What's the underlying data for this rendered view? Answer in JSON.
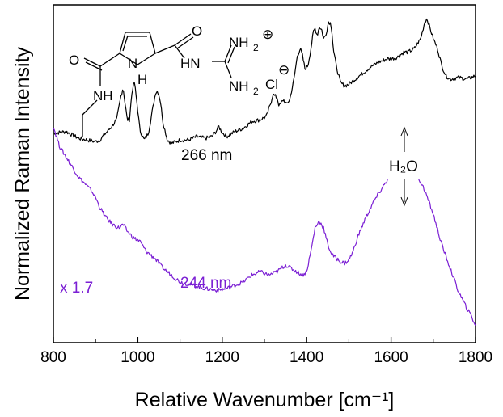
{
  "chart_data": {
    "type": "line",
    "title": "",
    "xlabel": "Relative Wavenumber [cm⁻¹]",
    "ylabel": "Normalized Raman Intensity",
    "xlim": [
      800,
      1800
    ],
    "ylim": [
      0,
      1
    ],
    "xticks": [
      800,
      1000,
      1200,
      1400,
      1600,
      1800
    ],
    "xtick_labels": [
      "800",
      "1000",
      "1200",
      "1400",
      "1600",
      "1800"
    ],
    "grid": false,
    "series": [
      {
        "name": "266 nm",
        "label": "266 nm",
        "color": "#000000",
        "x": [
          800,
          830,
          860,
          880,
          900,
          910,
          920,
          935,
          950,
          960,
          965,
          975,
          980,
          987,
          992,
          997,
          1005,
          1015,
          1025,
          1035,
          1042,
          1047,
          1053,
          1060,
          1070,
          1080,
          1100,
          1120,
          1140,
          1160,
          1175,
          1185,
          1192,
          1198,
          1210,
          1230,
          1250,
          1270,
          1290,
          1305,
          1315,
          1320,
          1325,
          1330,
          1335,
          1340,
          1345,
          1352,
          1360,
          1370,
          1378,
          1385,
          1390,
          1396,
          1403,
          1410,
          1416,
          1420,
          1425,
          1430,
          1436,
          1440,
          1445,
          1452,
          1457,
          1460,
          1463,
          1470,
          1480,
          1490,
          1500,
          1510,
          1520,
          1535,
          1550,
          1570,
          1590,
          1600,
          1615,
          1630,
          1640,
          1655,
          1670,
          1680,
          1685,
          1690,
          1700,
          1710,
          1720,
          1730,
          1740,
          1760,
          1780,
          1800
        ],
        "values": [
          0.62,
          0.625,
          0.605,
          0.6,
          0.595,
          0.6,
          0.615,
          0.635,
          0.66,
          0.73,
          0.755,
          0.66,
          0.66,
          0.75,
          0.77,
          0.72,
          0.63,
          0.6,
          0.62,
          0.69,
          0.74,
          0.745,
          0.72,
          0.65,
          0.6,
          0.59,
          0.6,
          0.6,
          0.61,
          0.605,
          0.61,
          0.625,
          0.64,
          0.625,
          0.61,
          0.625,
          0.635,
          0.655,
          0.66,
          0.67,
          0.71,
          0.735,
          0.73,
          0.725,
          0.7,
          0.71,
          0.72,
          0.705,
          0.72,
          0.78,
          0.85,
          0.87,
          0.85,
          0.81,
          0.82,
          0.87,
          0.92,
          0.93,
          0.91,
          0.935,
          0.925,
          0.9,
          0.91,
          0.95,
          0.945,
          0.92,
          0.87,
          0.82,
          0.77,
          0.76,
          0.765,
          0.775,
          0.785,
          0.8,
          0.815,
          0.83,
          0.84,
          0.84,
          0.845,
          0.86,
          0.86,
          0.87,
          0.9,
          0.95,
          0.96,
          0.94,
          0.9,
          0.87,
          0.82,
          0.79,
          0.78,
          0.785,
          0.78,
          0.79
        ]
      },
      {
        "name": "244 nm",
        "label": "244 nm",
        "scale_label": "x 1.7",
        "color": "#7b1fd4",
        "x": [
          800,
          805,
          815,
          830,
          845,
          860,
          875,
          890,
          900,
          910,
          925,
          940,
          955,
          965,
          975,
          990,
          1005,
          1020,
          1040,
          1060,
          1080,
          1100,
          1130,
          1160,
          1190,
          1210,
          1230,
          1250,
          1270,
          1290,
          1310,
          1330,
          1350,
          1370,
          1390,
          1400,
          1410,
          1420,
          1430,
          1440,
          1450,
          1460,
          1470,
          1480,
          1490,
          1500,
          1510,
          1520,
          1540,
          1560,
          1580,
          1600,
          1620,
          1635,
          1645,
          1660,
          1680,
          1700,
          1720,
          1740,
          1760,
          1780,
          1790,
          1800
        ],
        "values": [
          0.64,
          0.62,
          0.58,
          0.55,
          0.52,
          0.49,
          0.47,
          0.45,
          0.43,
          0.4,
          0.37,
          0.35,
          0.34,
          0.35,
          0.33,
          0.31,
          0.3,
          0.27,
          0.25,
          0.22,
          0.2,
          0.18,
          0.17,
          0.16,
          0.155,
          0.16,
          0.17,
          0.18,
          0.2,
          0.21,
          0.2,
          0.21,
          0.23,
          0.215,
          0.2,
          0.21,
          0.27,
          0.34,
          0.36,
          0.34,
          0.29,
          0.26,
          0.25,
          0.24,
          0.235,
          0.245,
          0.27,
          0.31,
          0.37,
          0.42,
          0.46,
          0.5,
          0.54,
          0.55,
          0.54,
          0.5,
          0.45,
          0.38,
          0.29,
          0.22,
          0.15,
          0.1,
          0.08,
          0.05
        ]
      }
    ],
    "annotations": [
      {
        "text": "H₂O",
        "x": 1640,
        "arrow": "double-vertical"
      }
    ]
  },
  "molecule": {
    "atoms": [
      "O",
      "N",
      "H",
      "O",
      "HN",
      "NH",
      "NH",
      "NH",
      "Cl"
    ],
    "subscripts": [
      "2",
      "2"
    ],
    "charges": [
      "⊕",
      "⊖"
    ]
  },
  "colors": {
    "series_266": "#000000",
    "series_244": "#7b1fd4"
  }
}
